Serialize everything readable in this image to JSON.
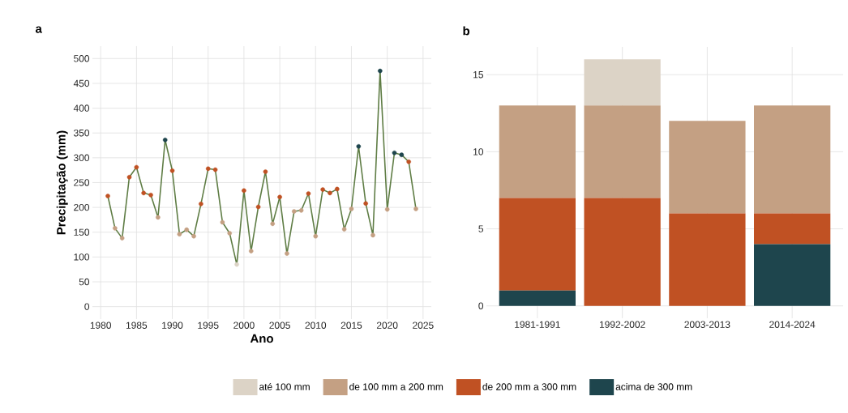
{
  "chart_data": [
    {
      "type": "line",
      "title": "a",
      "xlabel": "Ano",
      "ylabel": "Precipitação (mm)",
      "x": [
        1981,
        1982,
        1983,
        1984,
        1985,
        1986,
        1987,
        1988,
        1989,
        1990,
        1991,
        1992,
        1993,
        1994,
        1995,
        1996,
        1997,
        1998,
        1999,
        2000,
        2001,
        2002,
        2003,
        2004,
        2005,
        2006,
        2007,
        2008,
        2009,
        2010,
        2011,
        2012,
        2013,
        2014,
        2015,
        2016,
        2017,
        2018,
        2019,
        2020,
        2021,
        2022,
        2023,
        2024
      ],
      "series": [
        {
          "color": "#5f7d45",
          "values": [
            223,
            158,
            138,
            261,
            281,
            229,
            225,
            180,
            336,
            274,
            146,
            155,
            142,
            207,
            278,
            276,
            170,
            148,
            85,
            234,
            112,
            201,
            272,
            167,
            221,
            107,
            192,
            194,
            228,
            142,
            236,
            229,
            237,
            156,
            197,
            323,
            208,
            144,
            475,
            196,
            310,
            306,
            292,
            197
          ],
          "colors": [
            "#c05123",
            "#c4a083",
            "#c4a083",
            "#c05123",
            "#c05123",
            "#c05123",
            "#c05123",
            "#c4a083",
            "#1e454d",
            "#c05123",
            "#c4a083",
            "#c4a083",
            "#c4a083",
            "#c05123",
            "#c05123",
            "#c05123",
            "#c4a083",
            "#c4a083",
            "#dcd3c6",
            "#c05123",
            "#c4a083",
            "#c05123",
            "#c05123",
            "#c4a083",
            "#c05123",
            "#c4a083",
            "#c4a083",
            "#c4a083",
            "#c05123",
            "#c4a083",
            "#c05123",
            "#c05123",
            "#c05123",
            "#c4a083",
            "#c4a083",
            "#1e454d",
            "#c05123",
            "#c4a083",
            "#1e454d",
            "#c4a083",
            "#1e454d",
            "#1e454d",
            "#c05123",
            "#c4a083"
          ]
        }
      ],
      "xlim": [
        1978.85,
        2026.15
      ],
      "ylim": [
        -25,
        525
      ],
      "xticks": [
        1980,
        1985,
        1990,
        1995,
        2000,
        2005,
        2010,
        2015,
        2020,
        2025
      ],
      "yticks": [
        0,
        50,
        100,
        150,
        200,
        250,
        300,
        350,
        400,
        450,
        500
      ],
      "grid": true,
      "marker": "circle",
      "line_style": "solid"
    },
    {
      "type": "bar",
      "title": "b",
      "categories": [
        "1981-1991",
        "1992-2002",
        "2003-2013",
        "2014-2024"
      ],
      "series": [
        {
          "name": "acima de 300 mm",
          "color": "#1e454d",
          "values": [
            1,
            0,
            0,
            4
          ]
        },
        {
          "name": "de 200 mm a 300 mm",
          "color": "#c05123",
          "values": [
            6,
            7,
            6,
            2
          ]
        },
        {
          "name": "de 100 mm a 200 mm",
          "color": "#c4a083",
          "values": [
            6,
            6,
            6,
            7
          ]
        },
        {
          "name": "até 100 mm",
          "color": "#dcd3c6",
          "values": [
            0,
            3,
            0,
            0
          ]
        }
      ],
      "stacked": true,
      "ylim": [
        -0.8,
        16.8
      ],
      "yticks": [
        0,
        5,
        10,
        15
      ],
      "grid": true,
      "legend": "bottom"
    }
  ]
}
